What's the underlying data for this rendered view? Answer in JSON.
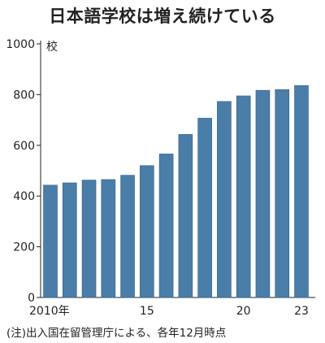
{
  "chart_data": {
    "type": "bar",
    "title": "日本語学校は増え続けている",
    "unit": "校",
    "x": [
      2010,
      2011,
      2012,
      2013,
      2014,
      2015,
      2016,
      2017,
      2018,
      2019,
      2020,
      2021,
      2022,
      2023
    ],
    "x_tick_labels": [
      {
        "year": 2010,
        "label": "2010年"
      },
      {
        "year": 2015,
        "label": "15"
      },
      {
        "year": 2020,
        "label": "20"
      },
      {
        "year": 2023,
        "label": "23"
      }
    ],
    "values": [
      443,
      452,
      463,
      465,
      482,
      520,
      566,
      643,
      707,
      773,
      795,
      817,
      820,
      836
    ],
    "ylim": [
      0,
      1000
    ],
    "y_ticks": [
      0,
      200,
      400,
      600,
      800,
      1000
    ],
    "grid": false,
    "bar_color": "#4a7ea8",
    "source_note": "(注)出入国在留管理庁による、各年12月時点"
  }
}
